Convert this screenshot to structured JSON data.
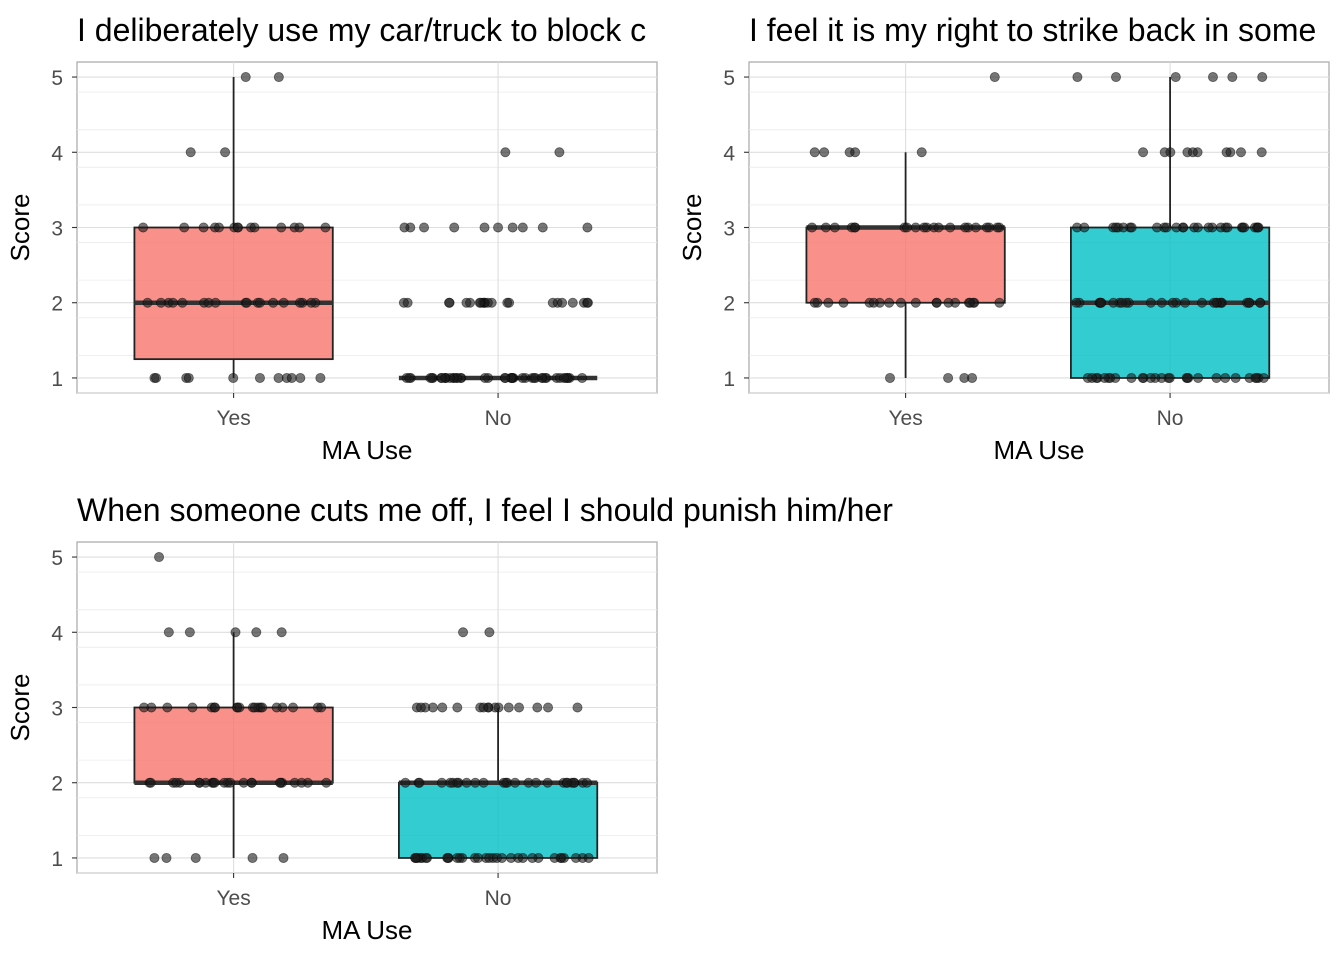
{
  "chart_data": [
    {
      "type": "box",
      "title": "I deliberately use my car/truck to block c",
      "xlabel": "MA Use",
      "ylabel": "Score",
      "ylim": [
        0.8,
        5.2
      ],
      "yticks": [
        1,
        2,
        3,
        4,
        5
      ],
      "grid": true,
      "categories": [
        "Yes",
        "No"
      ],
      "boxes": [
        {
          "category": "Yes",
          "color": "#f8766d",
          "whisker_low": 1,
          "q1": 1.25,
          "median": 2,
          "q3": 3,
          "whisker_high": 5
        },
        {
          "category": "No",
          "color": "#00bfc4",
          "whisker_low": 1,
          "q1": 1,
          "median": 1,
          "q3": 1,
          "whisker_high": 1
        }
      ],
      "points": [
        {
          "category": "Yes",
          "values": [
            5,
            5,
            4,
            4,
            3,
            3,
            3,
            3,
            3,
            3,
            3,
            3,
            3,
            3,
            3,
            3,
            3,
            3,
            2,
            2,
            2,
            2,
            2,
            2,
            2,
            2,
            2,
            2,
            2,
            2,
            2,
            2,
            2,
            2,
            2,
            2,
            1,
            1,
            1,
            1,
            1,
            1,
            1,
            1,
            1,
            1,
            1
          ]
        },
        {
          "category": "No",
          "values": [
            4,
            4,
            3,
            3,
            3,
            3,
            3,
            3,
            3,
            3,
            3,
            3,
            2,
            2,
            2,
            2,
            2,
            2,
            2,
            2,
            2,
            2,
            2,
            2,
            2,
            2,
            2,
            2,
            2,
            2,
            2,
            2,
            2,
            2,
            1,
            1,
            1,
            1,
            1,
            1,
            1,
            1,
            1,
            1,
            1,
            1,
            1,
            1,
            1,
            1,
            1,
            1,
            1,
            1,
            1,
            1,
            1,
            1,
            1,
            1,
            1,
            1,
            1,
            1,
            1,
            1,
            1,
            1,
            1,
            1,
            1,
            1,
            1,
            1,
            1,
            1,
            1,
            1
          ]
        }
      ]
    },
    {
      "type": "box",
      "title": "I feel it is my right to strike back in some",
      "xlabel": "MA Use",
      "ylabel": "Score",
      "ylim": [
        0.8,
        5.2
      ],
      "yticks": [
        1,
        2,
        3,
        4,
        5
      ],
      "grid": true,
      "categories": [
        "Yes",
        "No"
      ],
      "boxes": [
        {
          "category": "Yes",
          "color": "#f8766d",
          "whisker_low": 1,
          "q1": 2,
          "median": 3,
          "q3": 3,
          "whisker_high": 4
        },
        {
          "category": "No",
          "color": "#00bfc4",
          "whisker_low": 1,
          "q1": 1,
          "median": 2,
          "q3": 3,
          "whisker_high": 5
        }
      ],
      "points": [
        {
          "category": "Yes",
          "values": [
            5,
            4,
            4,
            4,
            4,
            4,
            3,
            3,
            3,
            3,
            3,
            3,
            3,
            3,
            3,
            3,
            3,
            3,
            3,
            3,
            3,
            3,
            3,
            3,
            3,
            3,
            3,
            2,
            2,
            2,
            2,
            2,
            2,
            2,
            2,
            2,
            2,
            2,
            2,
            2,
            2,
            2,
            2,
            2,
            2,
            2,
            1,
            1,
            1,
            1
          ]
        },
        {
          "category": "No",
          "values": [
            5,
            5,
            5,
            5,
            5,
            5,
            4,
            4,
            4,
            4,
            4,
            4,
            4,
            4,
            4,
            4,
            3,
            3,
            3,
            3,
            3,
            3,
            3,
            3,
            3,
            3,
            3,
            3,
            3,
            3,
            3,
            3,
            3,
            3,
            3,
            3,
            3,
            3,
            3,
            3,
            3,
            3,
            3,
            3,
            2,
            2,
            2,
            2,
            2,
            2,
            2,
            2,
            2,
            2,
            2,
            2,
            2,
            2,
            2,
            2,
            2,
            2,
            2,
            2,
            2,
            2,
            2,
            2,
            2,
            2,
            2,
            2,
            1,
            1,
            1,
            1,
            1,
            1,
            1,
            1,
            1,
            1,
            1,
            1,
            1,
            1,
            1,
            1,
            1,
            1,
            1,
            1,
            1,
            1,
            1,
            1,
            1,
            1,
            1,
            1
          ]
        }
      ]
    },
    {
      "type": "box",
      "title": "When someone cuts me off, I feel I should punish him/her",
      "xlabel": "MA Use",
      "ylabel": "Score",
      "ylim": [
        0.8,
        5.2
      ],
      "yticks": [
        1,
        2,
        3,
        4,
        5
      ],
      "grid": true,
      "categories": [
        "Yes",
        "No"
      ],
      "boxes": [
        {
          "category": "Yes",
          "color": "#f8766d",
          "whisker_low": 1,
          "q1": 2,
          "median": 2,
          "q3": 3,
          "whisker_high": 4
        },
        {
          "category": "No",
          "color": "#00bfc4",
          "whisker_low": 1,
          "q1": 1,
          "median": 2,
          "q3": 2,
          "whisker_high": 3
        }
      ],
      "points": [
        {
          "category": "Yes",
          "values": [
            5,
            4,
            4,
            4,
            4,
            4,
            3,
            3,
            3,
            3,
            3,
            3,
            3,
            3,
            3,
            3,
            3,
            3,
            3,
            3,
            3,
            3,
            3,
            3,
            3,
            3,
            2,
            2,
            2,
            2,
            2,
            2,
            2,
            2,
            2,
            2,
            2,
            2,
            2,
            2,
            2,
            2,
            2,
            2,
            2,
            2,
            2,
            2,
            2,
            2,
            1,
            1,
            1,
            1,
            1
          ]
        },
        {
          "category": "No",
          "values": [
            4,
            4,
            3,
            3,
            3,
            3,
            3,
            3,
            3,
            3,
            3,
            3,
            3,
            3,
            3,
            3,
            3,
            3,
            3,
            2,
            2,
            2,
            2,
            2,
            2,
            2,
            2,
            2,
            2,
            2,
            2,
            2,
            2,
            2,
            2,
            2,
            2,
            2,
            2,
            2,
            2,
            2,
            2,
            2,
            2,
            1,
            1,
            1,
            1,
            1,
            1,
            1,
            1,
            1,
            1,
            1,
            1,
            1,
            1,
            1,
            1,
            1,
            1,
            1,
            1,
            1,
            1,
            1,
            1,
            1,
            1,
            1,
            1,
            1,
            1,
            1,
            1,
            1
          ]
        }
      ]
    }
  ]
}
